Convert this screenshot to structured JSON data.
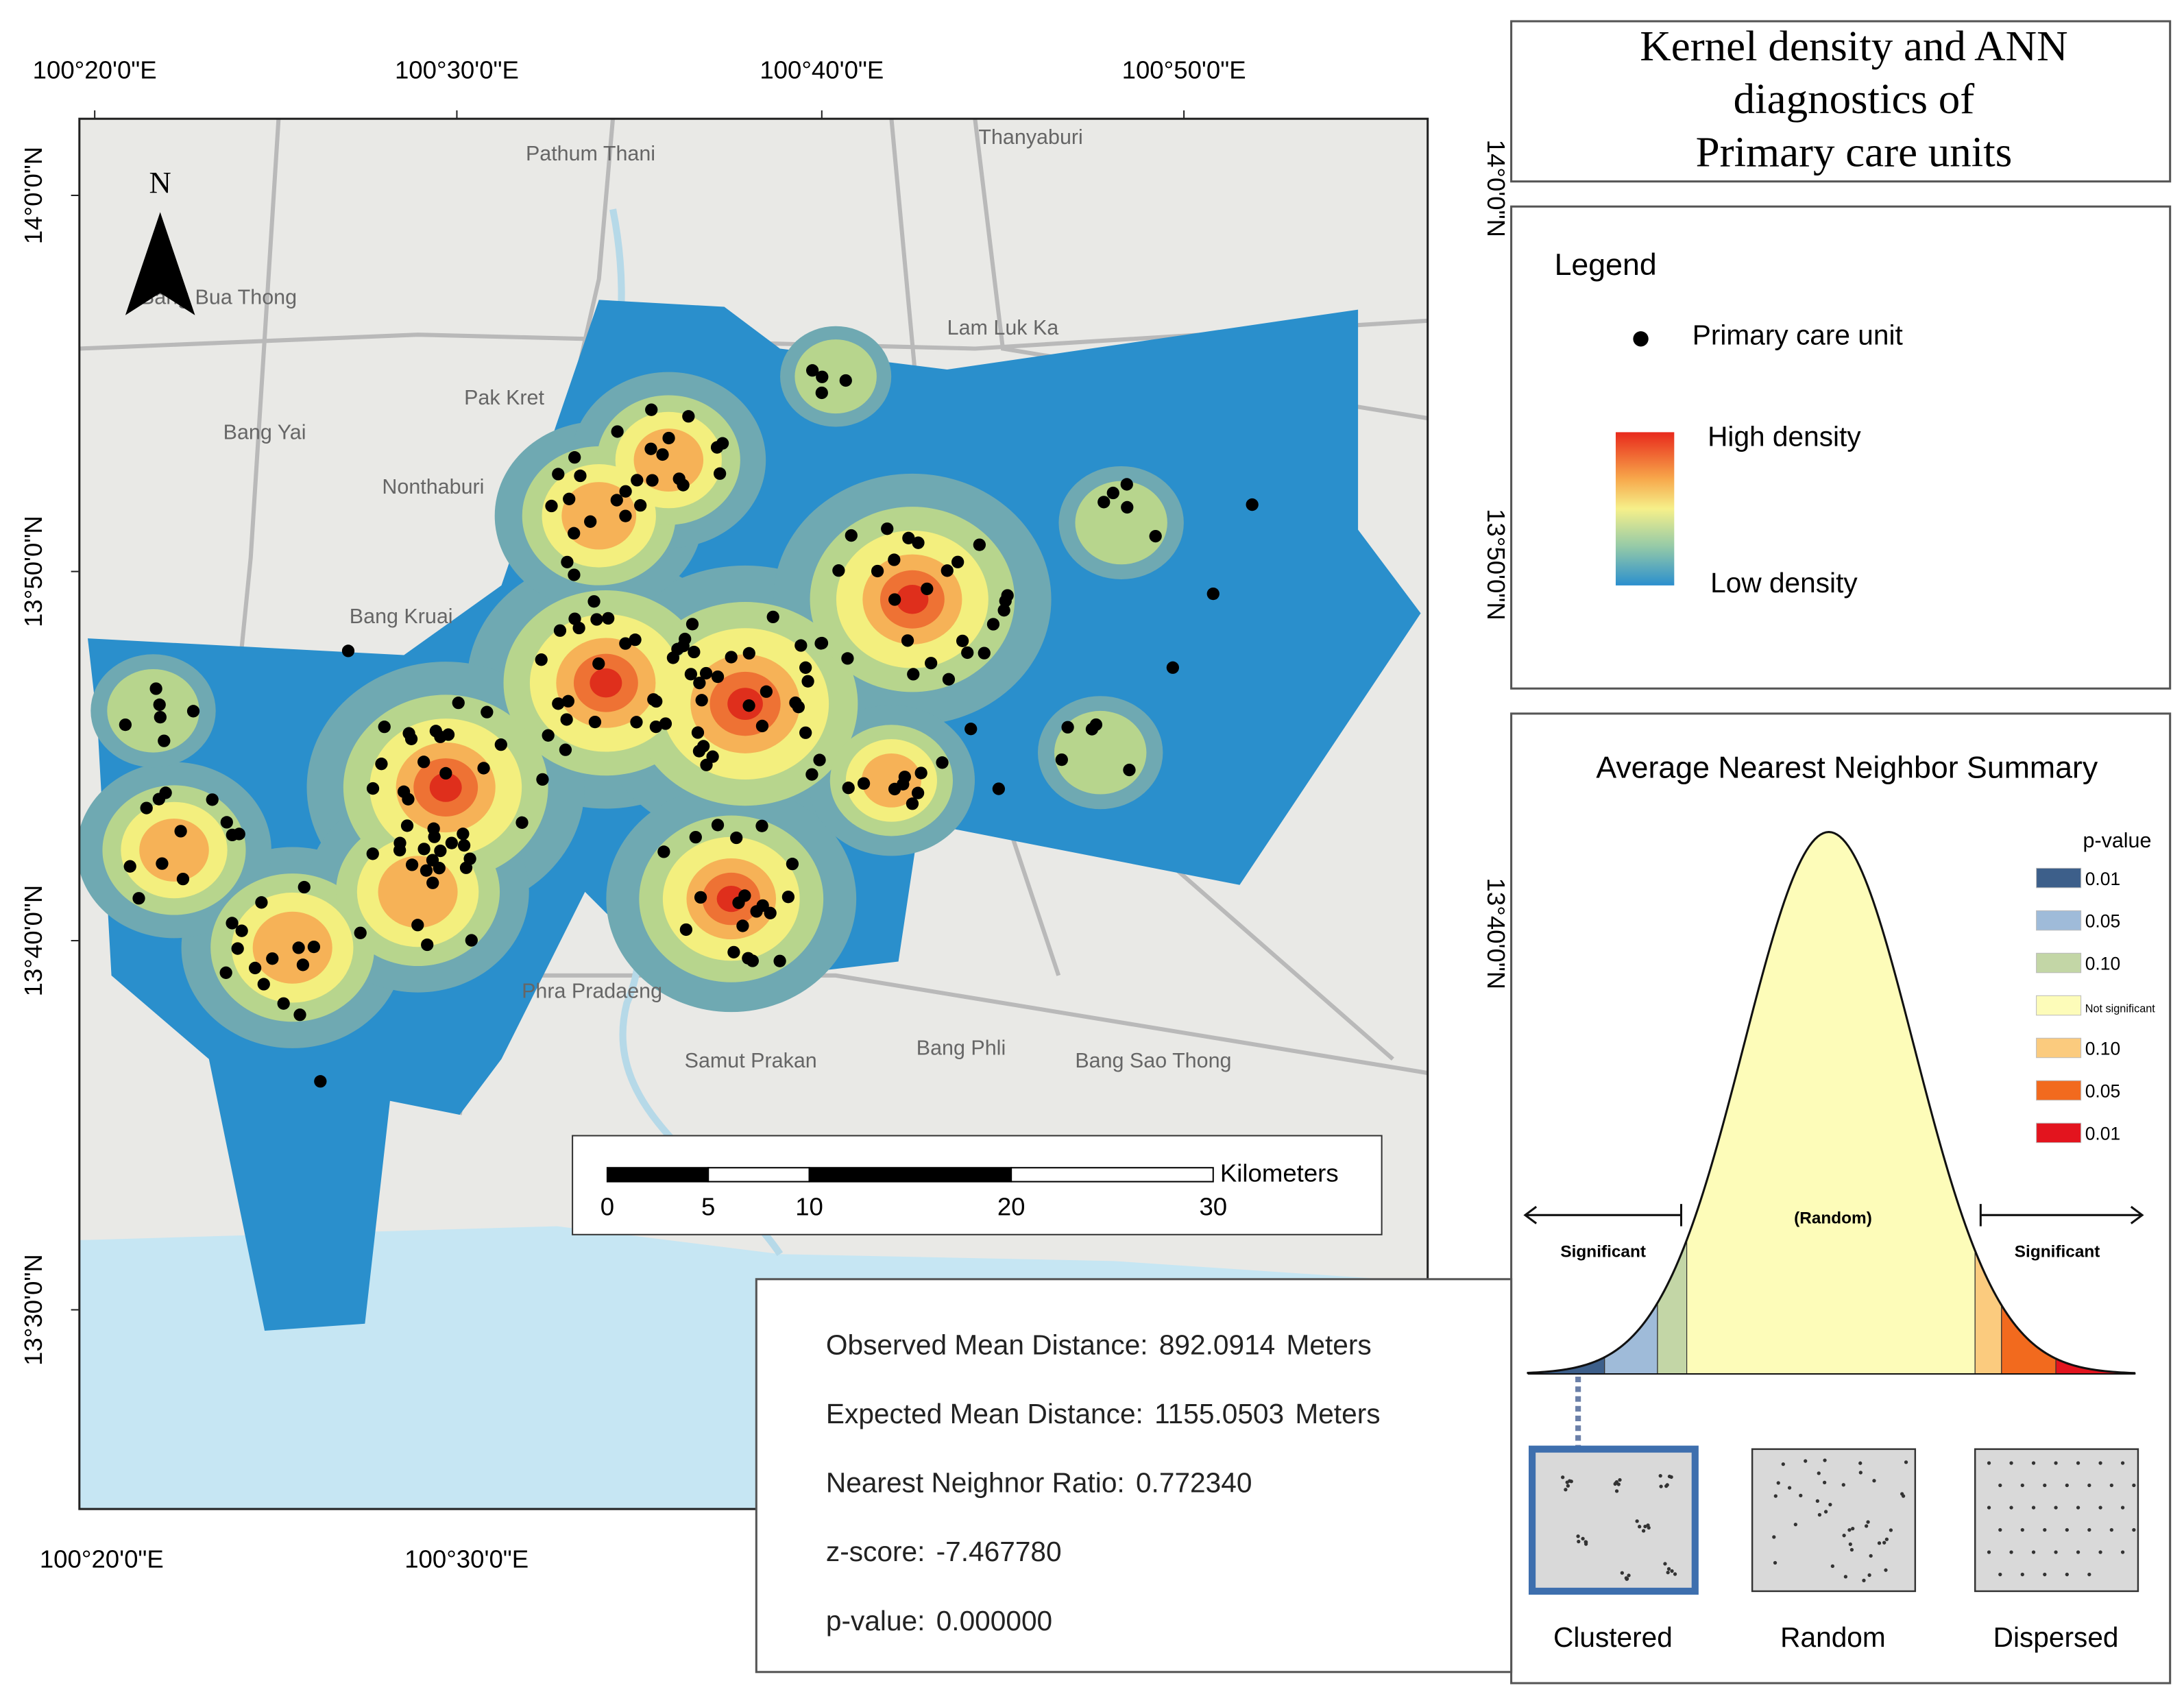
{
  "title": [
    "Kernel density and ANN",
    "diagnostics of",
    "Primary care units"
  ],
  "map": {
    "lon_labels_top": [
      "100°20'0\"E",
      "100°30'0\"E",
      "100°40'0\"E",
      "100°50'0\"E"
    ],
    "lon_labels_bottom": [
      "100°20'0\"E",
      "100°30'0\"E"
    ],
    "lat_labels_left": [
      "14°0'0\"N",
      "13°50'0\"N",
      "13°40'0\"N",
      "13°30'0\"N"
    ],
    "lat_labels_right": [
      "14°0'0\"N",
      "13°50'0\"N",
      "13°40'0\"N"
    ],
    "north": "N",
    "places": [
      "Pathum Thani",
      "Thanyaburi",
      "Lam Luk Ka",
      "Bang Bua Thong",
      "Pak Kret",
      "Bang Yai",
      "Nonthaburi",
      "Bang Kruai",
      "Phra Pradaeng",
      "Samut Prakan",
      "Bang Phli",
      "Bang Sao Thong"
    ],
    "scale_bar": {
      "unit": "Kilometers",
      "ticks": [
        0,
        5,
        10,
        20,
        30
      ]
    }
  },
  "legend": {
    "title": "Legend",
    "point": "Primary care unit",
    "high": "High density",
    "low": "Low density"
  },
  "ann": {
    "title": "Average Nearest Neighbor Summary",
    "pvalue_title": "p-value",
    "pvalue_classes": [
      {
        "label": "0.01",
        "color": "#3d5f8a"
      },
      {
        "label": "0.05",
        "color": "#9fbbd9"
      },
      {
        "label": "0.10",
        "color": "#c3d6a6"
      },
      {
        "label": "Not significant",
        "color": "#fdfcb9"
      },
      {
        "label": "0.10",
        "color": "#fbcb7e"
      },
      {
        "label": "0.05",
        "color": "#f26a1e"
      },
      {
        "label": "0.01",
        "color": "#e3141e"
      }
    ],
    "curve_labels": {
      "left": "Significant",
      "center": "(Random)",
      "right": "Significant"
    },
    "patterns": [
      "Clustered",
      "Random",
      "Dispersed"
    ]
  },
  "stats": [
    {
      "label": "Observed Mean Distance:",
      "value": "892.0914",
      "unit": "Meters"
    },
    {
      "label": "Expected Mean Distance:",
      "value": "1155.0503",
      "unit": "Meters"
    },
    {
      "label": "Nearest Neighnor Ratio:",
      "value": "0.772340"
    },
    {
      "label": "z-score:",
      "value": "-7.467780"
    },
    {
      "label": "p-value:",
      "value": "0.000000"
    }
  ]
}
